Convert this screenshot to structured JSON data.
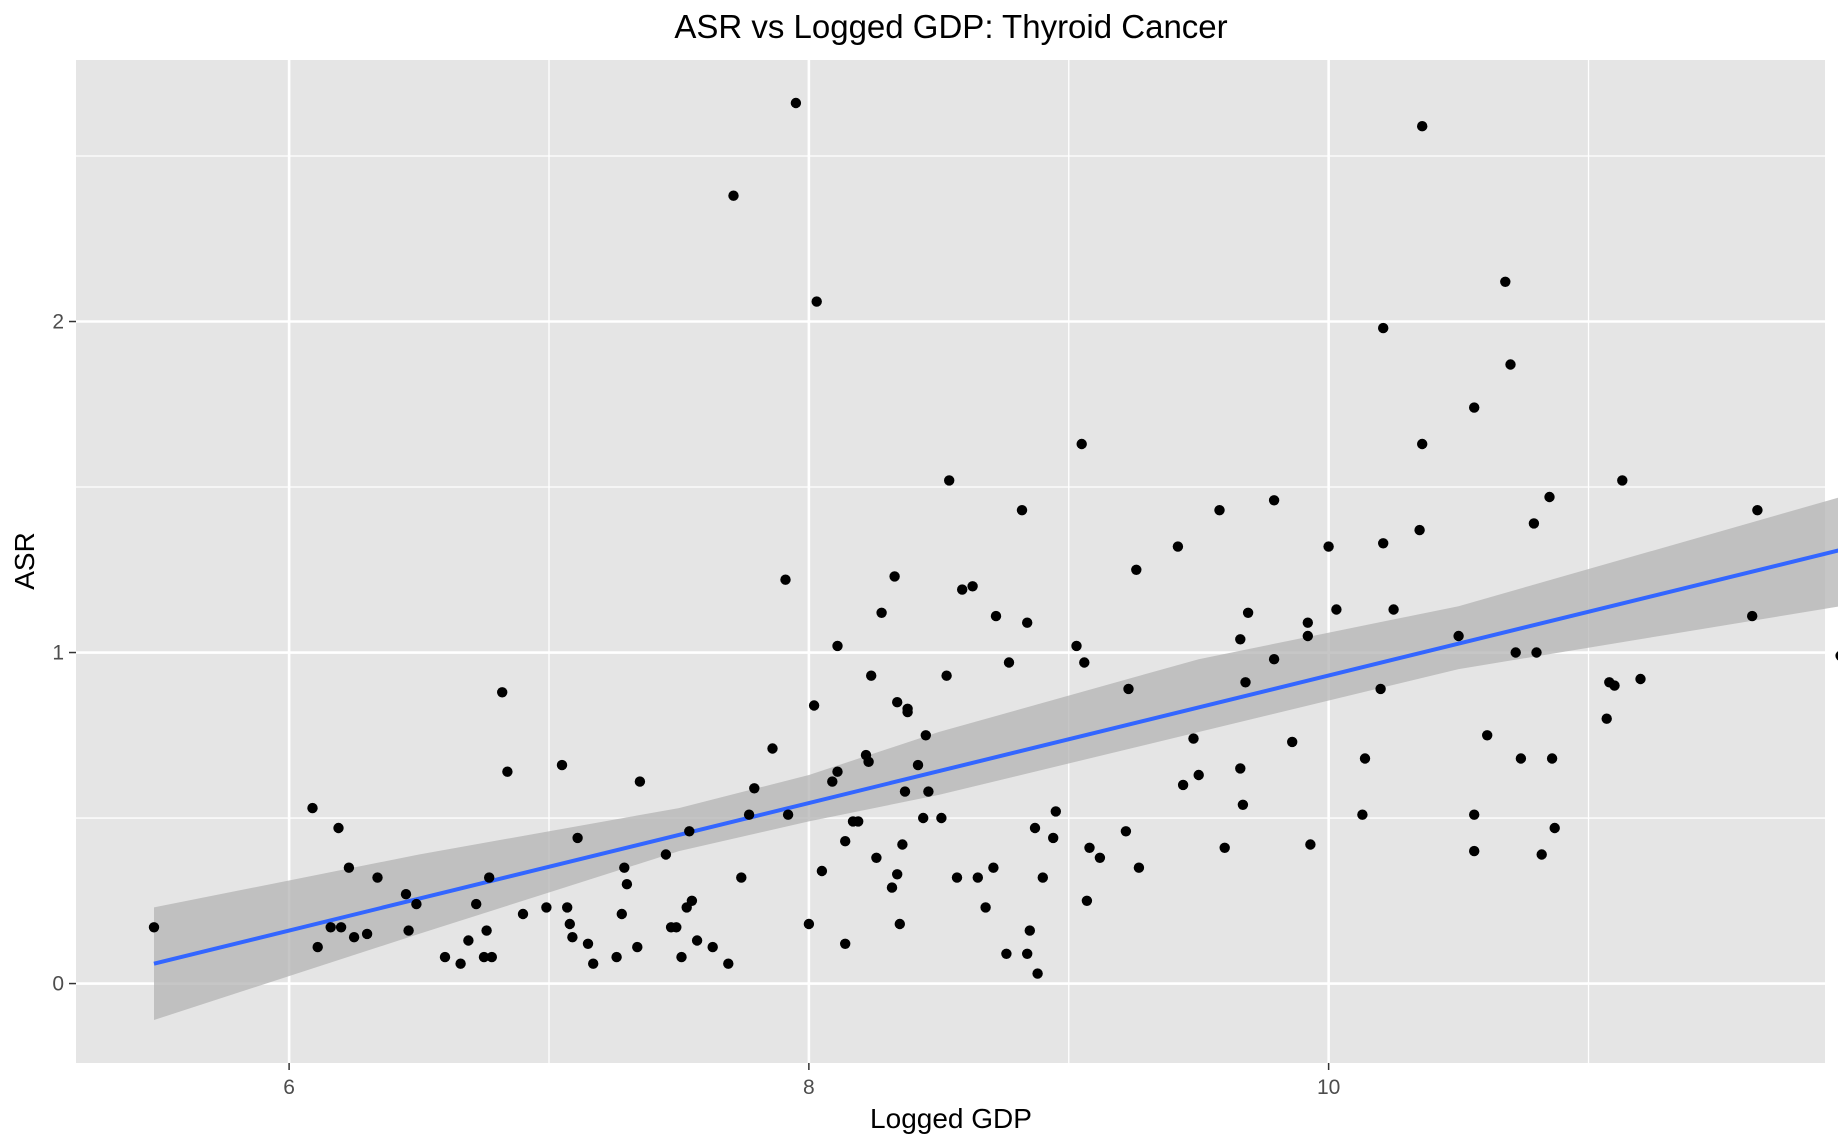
{
  "chart_data": {
    "type": "scatter",
    "title": "ASR vs Logged GDP: Thyroid Cancer",
    "xlabel": "Logged GDP",
    "ylabel": "ASR",
    "xlim": [
      5.18,
      11.91
    ],
    "ylim": [
      -0.24,
      2.79
    ],
    "x_ticks": [
      {
        "value": 6,
        "label": "6"
      },
      {
        "value": 8,
        "label": "8"
      },
      {
        "value": 10,
        "label": "10"
      }
    ],
    "y_ticks": [
      {
        "value": 0,
        "label": "0"
      },
      {
        "value": 1,
        "label": "1"
      },
      {
        "value": 2,
        "label": "2"
      }
    ],
    "grid": true,
    "legend": "none",
    "colors": {
      "panel": "#e5e5e5",
      "grid": "#ffffff",
      "points": "#000000",
      "fit_line": "#3366ff",
      "confidence_band": "#b3b3b3"
    },
    "points": [
      [
        5.48,
        0.17
      ],
      [
        6.09,
        0.53
      ],
      [
        6.11,
        0.11
      ],
      [
        6.16,
        0.17
      ],
      [
        6.19,
        0.47
      ],
      [
        6.2,
        0.17
      ],
      [
        6.23,
        0.35
      ],
      [
        6.25,
        0.14
      ],
      [
        6.3,
        0.15
      ],
      [
        6.34,
        0.32
      ],
      [
        6.45,
        0.27
      ],
      [
        6.46,
        0.16
      ],
      [
        6.49,
        0.24
      ],
      [
        6.6,
        0.08
      ],
      [
        6.66,
        0.06
      ],
      [
        6.69,
        0.13
      ],
      [
        6.72,
        0.24
      ],
      [
        6.75,
        0.08
      ],
      [
        6.76,
        0.16
      ],
      [
        6.77,
        0.32
      ],
      [
        6.78,
        0.08
      ],
      [
        6.82,
        0.88
      ],
      [
        6.84,
        0.64
      ],
      [
        6.9,
        0.21
      ],
      [
        6.99,
        0.23
      ],
      [
        7.05,
        0.66
      ],
      [
        7.07,
        0.23
      ],
      [
        7.08,
        0.18
      ],
      [
        7.09,
        0.14
      ],
      [
        7.11,
        0.44
      ],
      [
        7.15,
        0.12
      ],
      [
        7.17,
        0.06
      ],
      [
        7.26,
        0.08
      ],
      [
        7.28,
        0.21
      ],
      [
        7.29,
        0.35
      ],
      [
        7.3,
        0.3
      ],
      [
        7.34,
        0.11
      ],
      [
        7.35,
        0.61
      ],
      [
        7.45,
        0.39
      ],
      [
        7.47,
        0.17
      ],
      [
        7.49,
        0.17
      ],
      [
        7.51,
        0.08
      ],
      [
        7.53,
        0.23
      ],
      [
        7.54,
        0.46
      ],
      [
        7.55,
        0.25
      ],
      [
        7.57,
        0.13
      ],
      [
        7.63,
        0.11
      ],
      [
        7.69,
        0.06
      ],
      [
        7.71,
        2.38
      ],
      [
        7.74,
        0.32
      ],
      [
        7.77,
        0.51
      ],
      [
        7.79,
        0.59
      ],
      [
        7.86,
        0.71
      ],
      [
        7.91,
        1.22
      ],
      [
        7.92,
        0.51
      ],
      [
        7.95,
        2.66
      ],
      [
        8.0,
        0.18
      ],
      [
        8.02,
        0.84
      ],
      [
        8.03,
        2.06
      ],
      [
        8.05,
        0.34
      ],
      [
        8.09,
        0.61
      ],
      [
        8.11,
        1.02
      ],
      [
        8.11,
        0.64
      ],
      [
        8.14,
        0.12
      ],
      [
        8.14,
        0.43
      ],
      [
        8.17,
        0.49
      ],
      [
        8.19,
        0.49
      ],
      [
        8.22,
        0.69
      ],
      [
        8.23,
        0.67
      ],
      [
        8.24,
        0.93
      ],
      [
        8.26,
        0.38
      ],
      [
        8.28,
        1.12
      ],
      [
        8.32,
        0.29
      ],
      [
        8.33,
        1.23
      ],
      [
        8.34,
        0.33
      ],
      [
        8.34,
        0.85
      ],
      [
        8.35,
        0.18
      ],
      [
        8.36,
        0.42
      ],
      [
        8.37,
        0.58
      ],
      [
        8.38,
        0.83
      ],
      [
        8.38,
        0.82
      ],
      [
        8.42,
        0.66
      ],
      [
        8.44,
        0.5
      ],
      [
        8.45,
        0.75
      ],
      [
        8.46,
        0.58
      ],
      [
        8.51,
        0.5
      ],
      [
        8.53,
        0.93
      ],
      [
        8.54,
        1.52
      ],
      [
        8.57,
        0.32
      ],
      [
        8.59,
        1.19
      ],
      [
        8.63,
        1.2
      ],
      [
        8.65,
        0.32
      ],
      [
        8.68,
        0.23
      ],
      [
        8.71,
        0.35
      ],
      [
        8.72,
        1.11
      ],
      [
        8.76,
        0.09
      ],
      [
        8.77,
        0.97
      ],
      [
        8.82,
        1.43
      ],
      [
        8.84,
        0.09
      ],
      [
        8.84,
        1.09
      ],
      [
        8.85,
        0.16
      ],
      [
        8.87,
        0.47
      ],
      [
        8.88,
        0.03
      ],
      [
        8.9,
        0.32
      ],
      [
        8.94,
        0.44
      ],
      [
        8.95,
        0.52
      ],
      [
        9.03,
        1.02
      ],
      [
        9.05,
        1.63
      ],
      [
        9.06,
        0.97
      ],
      [
        9.07,
        0.25
      ],
      [
        9.08,
        0.41
      ],
      [
        9.12,
        0.38
      ],
      [
        9.22,
        0.46
      ],
      [
        9.23,
        0.89
      ],
      [
        9.26,
        1.25
      ],
      [
        9.27,
        0.35
      ],
      [
        9.42,
        1.32
      ],
      [
        9.44,
        0.6
      ],
      [
        9.48,
        0.74
      ],
      [
        9.5,
        0.63
      ],
      [
        9.58,
        1.43
      ],
      [
        9.6,
        0.41
      ],
      [
        9.66,
        0.65
      ],
      [
        9.66,
        1.04
      ],
      [
        9.67,
        0.54
      ],
      [
        9.68,
        0.91
      ],
      [
        9.69,
        1.12
      ],
      [
        9.79,
        0.98
      ],
      [
        9.79,
        1.46
      ],
      [
        9.86,
        0.73
      ],
      [
        9.92,
        1.09
      ],
      [
        9.92,
        1.05
      ],
      [
        9.93,
        0.42
      ],
      [
        10.0,
        1.32
      ],
      [
        10.03,
        1.13
      ],
      [
        10.13,
        0.51
      ],
      [
        10.14,
        0.68
      ],
      [
        10.2,
        0.89
      ],
      [
        10.21,
        1.98
      ],
      [
        10.21,
        1.33
      ],
      [
        10.25,
        1.13
      ],
      [
        10.35,
        1.37
      ],
      [
        10.36,
        2.59
      ],
      [
        10.36,
        1.63
      ],
      [
        10.5,
        1.05
      ],
      [
        10.56,
        1.74
      ],
      [
        10.56,
        0.51
      ],
      [
        10.56,
        0.4
      ],
      [
        10.61,
        0.75
      ],
      [
        10.68,
        2.12
      ],
      [
        10.7,
        1.87
      ],
      [
        10.72,
        1.0
      ],
      [
        10.74,
        0.68
      ],
      [
        10.79,
        1.39
      ],
      [
        10.8,
        1.0
      ],
      [
        10.82,
        0.39
      ],
      [
        10.85,
        1.47
      ],
      [
        10.86,
        0.68
      ],
      [
        10.87,
        0.47
      ],
      [
        11.07,
        0.8
      ],
      [
        11.08,
        0.91
      ],
      [
        11.1,
        0.9
      ],
      [
        11.13,
        1.52
      ],
      [
        11.2,
        0.92
      ],
      [
        11.63,
        1.11
      ],
      [
        11.65,
        1.43
      ],
      [
        11.97,
        0.99
      ]
    ],
    "fit_line": {
      "x": [
        5.48,
        11.97
      ],
      "y": [
        0.06,
        1.31
      ]
    },
    "confidence_band": {
      "x": [
        5.48,
        6.5,
        7.5,
        8.0,
        8.5,
        9.5,
        10.5,
        11.97
      ],
      "upper": [
        0.23,
        0.39,
        0.53,
        0.63,
        0.76,
        0.98,
        1.14,
        1.47
      ],
      "lower": [
        -0.11,
        0.15,
        0.4,
        0.49,
        0.57,
        0.76,
        0.95,
        1.14
      ]
    }
  }
}
